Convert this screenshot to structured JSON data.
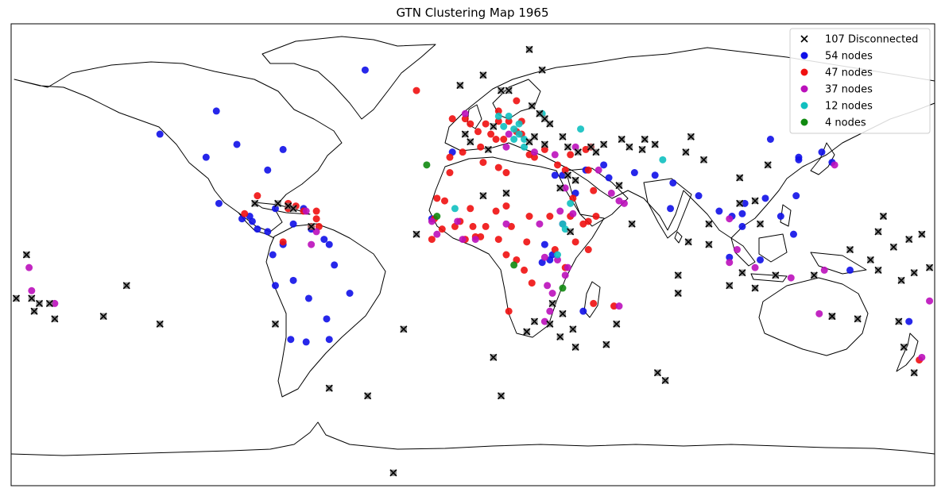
{
  "title": "GTN Clustering Map 1965",
  "colors": {
    "blue": "#1010e8",
    "red": "#f01010",
    "magenta": "#bb10bb",
    "cyan": "#10c0c0",
    "green": "#108a10",
    "disconnected": "#000000",
    "land_stroke": "#000000"
  },
  "chart_data": {
    "type": "scatter",
    "projection": "equirectangular",
    "xlim": [
      -180,
      180
    ],
    "ylim": [
      -90,
      90
    ],
    "grid": false,
    "legend_position": "top-right",
    "legend": [
      {
        "label": "107 Disconnected",
        "marker": "x",
        "color": "#000000"
      },
      {
        "label": "54 nodes",
        "marker": "o",
        "color": "#1010e8"
      },
      {
        "label": "47 nodes",
        "marker": "o",
        "color": "#f01010"
      },
      {
        "label": "37 nodes",
        "marker": "o",
        "color": "#bb10bb"
      },
      {
        "label": "12 nodes",
        "marker": "o",
        "color": "#10c0c0"
      },
      {
        "label": "4 nodes",
        "marker": "o",
        "color": "#108a10"
      }
    ],
    "series": [
      {
        "label": "54 nodes",
        "color": "#1010e8",
        "marker": "o",
        "points": [
          [
            -42,
            72
          ],
          [
            -100,
            56
          ],
          [
            -92,
            43
          ],
          [
            -74,
            41
          ],
          [
            -80,
            33
          ],
          [
            -104,
            38
          ],
          [
            -122,
            47
          ],
          [
            -99,
            20
          ],
          [
            -90,
            14
          ],
          [
            -87,
            15
          ],
          [
            -86,
            13
          ],
          [
            -84,
            10
          ],
          [
            -80,
            9
          ],
          [
            -77,
            18
          ],
          [
            -66,
            18
          ],
          [
            -70,
            12
          ],
          [
            -63,
            10
          ],
          [
            -74,
            4
          ],
          [
            -78,
            0
          ],
          [
            -58,
            6
          ],
          [
            -56,
            4
          ],
          [
            -70,
            -10
          ],
          [
            -64,
            -17
          ],
          [
            -48,
            -15
          ],
          [
            -57,
            -25
          ],
          [
            -56,
            -33
          ],
          [
            -65,
            -34
          ],
          [
            -71,
            -33
          ],
          [
            -77,
            -12
          ],
          [
            -54,
            -4
          ],
          [
            -8,
            40
          ],
          [
            -16,
            14
          ],
          [
            32,
            31
          ],
          [
            35,
            31
          ],
          [
            40,
            24
          ],
          [
            44,
            33
          ],
          [
            53,
            30
          ],
          [
            51,
            35
          ],
          [
            63,
            32
          ],
          [
            71,
            31
          ],
          [
            78,
            28
          ],
          [
            77,
            18
          ],
          [
            88,
            23
          ],
          [
            96,
            17
          ],
          [
            101,
            15
          ],
          [
            105,
            16
          ],
          [
            106,
            20
          ],
          [
            105,
            11
          ],
          [
            120,
            15
          ],
          [
            114,
            22
          ],
          [
            127,
            38
          ],
          [
            140,
            36
          ],
          [
            126,
            23
          ],
          [
            136,
            40
          ],
          [
            147,
            -6
          ],
          [
            27,
            -3
          ],
          [
            30,
            -2
          ],
          [
            28,
            4
          ],
          [
            31,
            0
          ],
          [
            43,
            -22
          ],
          [
            112,
            -2
          ],
          [
            100,
            -1
          ],
          [
            125,
            8
          ],
          [
            170,
            -26
          ],
          [
            116,
            45
          ],
          [
            127,
            37
          ]
        ]
      },
      {
        "label": "47 nodes",
        "color": "#f01010",
        "marker": "o",
        "points": [
          [
            -22,
            64
          ],
          [
            2,
            48
          ],
          [
            -3,
            53
          ],
          [
            -8,
            53
          ],
          [
            -1,
            51
          ],
          [
            5,
            51
          ],
          [
            7,
            47
          ],
          [
            10,
            52
          ],
          [
            14,
            52
          ],
          [
            19,
            52
          ],
          [
            19,
            47
          ],
          [
            17,
            48
          ],
          [
            12,
            45
          ],
          [
            9,
            45
          ],
          [
            10,
            56
          ],
          [
            17,
            60
          ],
          [
            -4,
            40
          ],
          [
            -9,
            38
          ],
          [
            3,
            42
          ],
          [
            4,
            36
          ],
          [
            10,
            34
          ],
          [
            13,
            32
          ],
          [
            22,
            39
          ],
          [
            28,
            41
          ],
          [
            24,
            38
          ],
          [
            33,
            35
          ],
          [
            38,
            39
          ],
          [
            44,
            41
          ],
          [
            46,
            42
          ],
          [
            36,
            33
          ],
          [
            45,
            33
          ],
          [
            39,
            22
          ],
          [
            47,
            25
          ],
          [
            48,
            15
          ],
          [
            45,
            13
          ],
          [
            43,
            12
          ],
          [
            38,
            15
          ],
          [
            30,
            15
          ],
          [
            22,
            15
          ],
          [
            15,
            11
          ],
          [
            13,
            19
          ],
          [
            9,
            17
          ],
          [
            5,
            11
          ],
          [
            0,
            11
          ],
          [
            -5,
            13
          ],
          [
            -1,
            18
          ],
          [
            -15,
            14
          ],
          [
            -14,
            22
          ],
          [
            -11,
            21
          ],
          [
            -7,
            11
          ],
          [
            -3,
            6
          ],
          [
            -12,
            10
          ],
          [
            -16,
            6
          ],
          [
            1,
            7
          ],
          [
            3,
            7
          ],
          [
            10,
            6
          ],
          [
            13,
            0
          ],
          [
            17,
            -2
          ],
          [
            21,
            5
          ],
          [
            20,
            -6
          ],
          [
            23,
            -11
          ],
          [
            32,
            2
          ],
          [
            36,
            -5
          ],
          [
            40,
            5
          ],
          [
            45,
            2
          ],
          [
            47,
            -19
          ],
          [
            55,
            -20
          ],
          [
            14,
            -22
          ],
          [
            -84,
            23
          ],
          [
            -69,
            19
          ],
          [
            -72,
            18
          ],
          [
            -66,
            17
          ],
          [
            -61,
            14
          ],
          [
            -60,
            11
          ],
          [
            -61,
            17
          ],
          [
            -63,
            11
          ],
          [
            -74,
            5
          ],
          [
            -89,
            16
          ],
          [
            -72,
            20
          ],
          [
            174,
            -41
          ],
          [
            -9,
            32
          ]
        ]
      },
      {
        "label": "37 nodes",
        "color": "#bb10bb",
        "marker": "o",
        "points": [
          [
            -3,
            55
          ],
          [
            14,
            47
          ],
          [
            13,
            42
          ],
          [
            32,
            39
          ],
          [
            24,
            40
          ],
          [
            40,
            42
          ],
          [
            36,
            26
          ],
          [
            49,
            33
          ],
          [
            54,
            24
          ],
          [
            57,
            21
          ],
          [
            59,
            20
          ],
          [
            39,
            16
          ],
          [
            34,
            17
          ],
          [
            35,
            12
          ],
          [
            26,
            12
          ],
          [
            13,
            12
          ],
          [
            1,
            6
          ],
          [
            -6,
            13
          ],
          [
            -4,
            6
          ],
          [
            -14,
            8
          ],
          [
            -16,
            13
          ],
          [
            -65,
            17
          ],
          [
            -61,
            9
          ],
          [
            -63,
            4
          ],
          [
            28,
            -1
          ],
          [
            33,
            -2
          ],
          [
            37,
            -5
          ],
          [
            36,
            -8
          ],
          [
            29,
            -12
          ],
          [
            31,
            -15
          ],
          [
            30,
            -22
          ],
          [
            28,
            -26
          ],
          [
            57,
            -20
          ],
          [
            100,
            14
          ],
          [
            103,
            2
          ],
          [
            100,
            -3
          ],
          [
            110,
            -5
          ],
          [
            124,
            -9
          ],
          [
            137,
            -6
          ],
          [
            135,
            -23
          ],
          [
            178,
            -18
          ],
          [
            175,
            -40
          ],
          [
            141,
            35
          ],
          [
            -172,
            -14
          ],
          [
            -173,
            -5
          ],
          [
            -163,
            -19
          ]
        ]
      },
      {
        "label": "12 nodes",
        "color": "#10c0c0",
        "marker": "o",
        "points": [
          [
            27,
            55
          ],
          [
            14,
            54
          ],
          [
            10,
            54
          ],
          [
            16,
            49
          ],
          [
            18,
            51
          ],
          [
            12,
            50
          ],
          [
            20,
            45
          ],
          [
            16,
            45
          ],
          [
            18,
            47
          ],
          [
            20,
            42
          ],
          [
            42,
            49
          ],
          [
            74,
            37
          ],
          [
            36,
            10
          ],
          [
            38,
            20
          ],
          [
            -7,
            18
          ],
          [
            35,
            12
          ],
          [
            33,
            0
          ]
        ]
      },
      {
        "label": "4 nodes",
        "color": "#108a10",
        "marker": "o",
        "points": [
          [
            -18,
            35
          ],
          [
            -14,
            15
          ],
          [
            16,
            -4
          ],
          [
            35,
            -13
          ]
        ]
      },
      {
        "label": "107 Disconnected",
        "color": "#000000",
        "marker": "x",
        "points": [
          [
            22,
            80
          ],
          [
            27,
            72
          ],
          [
            -5,
            66
          ],
          [
            4,
            70
          ],
          [
            11,
            64
          ],
          [
            14,
            64
          ],
          [
            23,
            58
          ],
          [
            26,
            55
          ],
          [
            28,
            53
          ],
          [
            30,
            51
          ],
          [
            8,
            50
          ],
          [
            -3,
            47
          ],
          [
            -1,
            44
          ],
          [
            6,
            41
          ],
          [
            22,
            44
          ],
          [
            28,
            43
          ],
          [
            24,
            46
          ],
          [
            35,
            46
          ],
          [
            37,
            42
          ],
          [
            41,
            40
          ],
          [
            46,
            42
          ],
          [
            48,
            40
          ],
          [
            51,
            43
          ],
          [
            58,
            45
          ],
          [
            61,
            42
          ],
          [
            66,
            41
          ],
          [
            67,
            45
          ],
          [
            71,
            43
          ],
          [
            85,
            46
          ],
          [
            90,
            37
          ],
          [
            83,
            40
          ],
          [
            115,
            35
          ],
          [
            104,
            30
          ],
          [
            104,
            20
          ],
          [
            110,
            21
          ],
          [
            57,
            27
          ],
          [
            40,
            29
          ],
          [
            37,
            31
          ],
          [
            34,
            26
          ],
          [
            62,
            12
          ],
          [
            38,
            9
          ],
          [
            31,
            -19
          ],
          [
            35,
            -23
          ],
          [
            39,
            -29
          ],
          [
            34,
            -32
          ],
          [
            21,
            -30
          ],
          [
            24,
            -26
          ],
          [
            30,
            -27
          ],
          [
            40,
            -36
          ],
          [
            8,
            -40
          ],
          [
            -56,
            -52
          ],
          [
            -41,
            -55
          ],
          [
            11,
            -55
          ],
          [
            -77,
            -27
          ],
          [
            -122,
            -27
          ],
          [
            -144,
            -24
          ],
          [
            -163,
            -25
          ],
          [
            -171,
            -22
          ],
          [
            -172,
            -17
          ],
          [
            -169,
            -19
          ],
          [
            -178,
            -17
          ],
          [
            -165,
            -19
          ],
          [
            -174,
            0
          ],
          [
            -22,
            8
          ],
          [
            -27,
            -29
          ],
          [
            80,
            -8
          ],
          [
            80,
            -15
          ],
          [
            72,
            -46
          ],
          [
            75,
            -49
          ],
          [
            52,
            -35
          ],
          [
            56,
            -27
          ],
          [
            -31,
            -85
          ],
          [
            100,
            -12
          ],
          [
            110,
            -13
          ],
          [
            118,
            -8
          ],
          [
            133,
            -8
          ],
          [
            140,
            -24
          ],
          [
            150,
            -25
          ],
          [
            147,
            2
          ],
          [
            155,
            -2
          ],
          [
            158,
            -6
          ],
          [
            170,
            6
          ],
          [
            172,
            -7
          ],
          [
            167,
            -10
          ],
          [
            166,
            -26
          ],
          [
            168,
            -36
          ],
          [
            172,
            -46
          ],
          [
            178,
            -5
          ],
          [
            175,
            8
          ],
          [
            164,
            3
          ],
          [
            158,
            9
          ],
          [
            160,
            15
          ],
          [
            112,
            12
          ],
          [
            105,
            -7
          ],
          [
            92,
            12
          ],
          [
            92,
            4
          ],
          [
            84,
            5
          ],
          [
            -135,
            -12
          ],
          [
            4,
            23
          ],
          [
            13,
            24
          ],
          [
            140,
            -24
          ],
          [
            -85,
            20
          ],
          [
            -76,
            20
          ],
          [
            -72,
            19
          ],
          [
            -70,
            18
          ],
          [
            -63,
            11
          ]
        ]
      }
    ]
  }
}
